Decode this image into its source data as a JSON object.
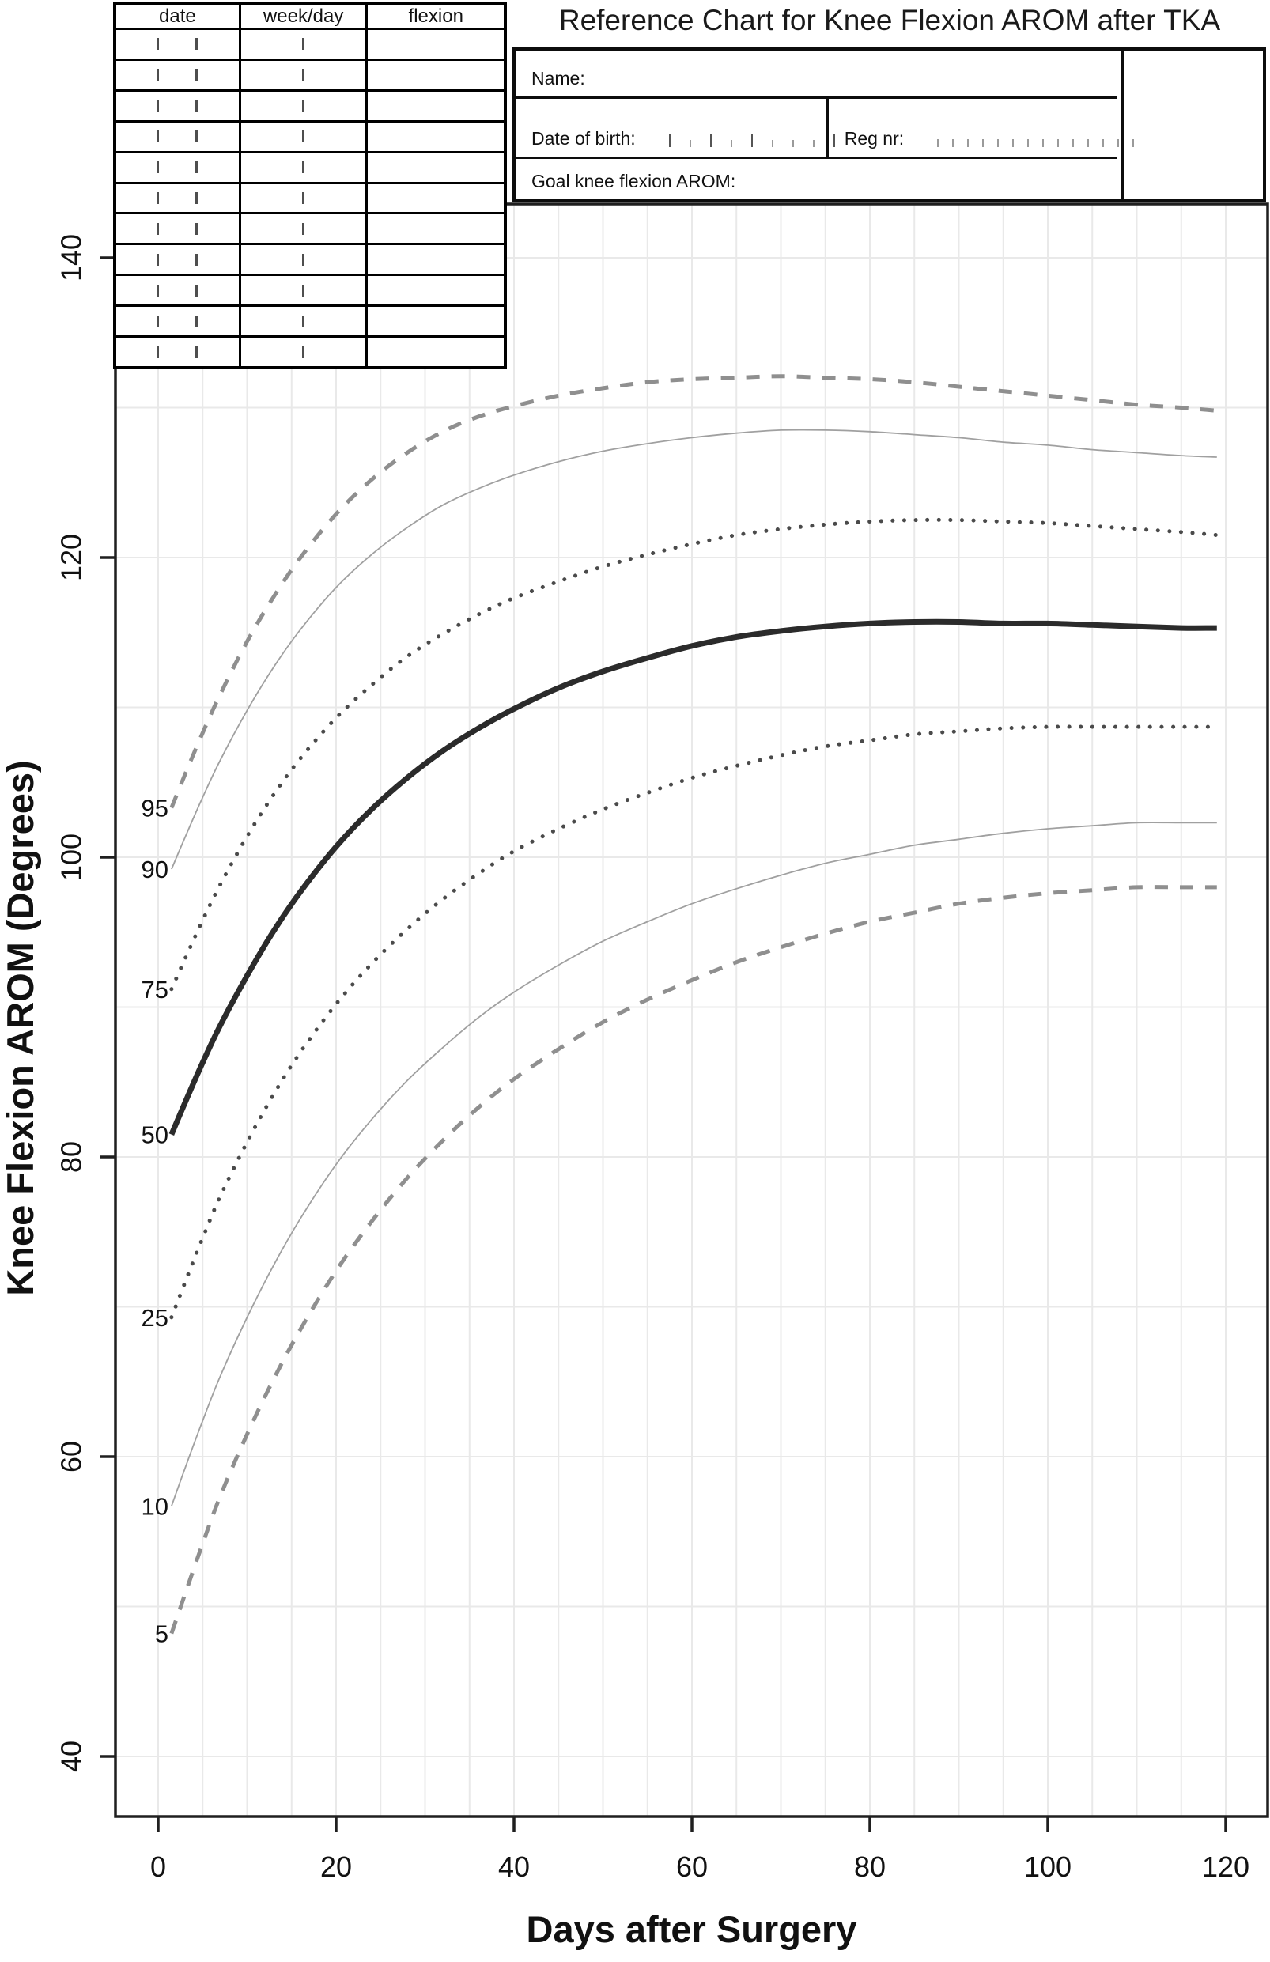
{
  "title": "Reference Chart for Knee Flexion AROM after TKA",
  "log_table": {
    "headers": [
      "date",
      "week/day",
      "flexion"
    ],
    "row_count": 11,
    "date_tick_count": 2,
    "week_tick_count": 1
  },
  "form": {
    "name_label": "Name:",
    "dob_label": "Date of birth:",
    "reg_label": "Reg nr:",
    "goal_label": "Goal knee flexion AROM:",
    "dob_tick_pattern": [
      "tall",
      "short",
      "tall",
      "short",
      "tall",
      "short",
      "short",
      "short",
      "tall"
    ],
    "reg_tick_count": 14
  },
  "colors": {
    "axis": "#1f1f1f",
    "grid": "#e9e9e9",
    "median": "#2b2b2b",
    "dotted": "#4a4a4a",
    "thin": "#a0a0a0",
    "dashed": "#8f8f8f"
  },
  "chart_data": {
    "type": "line",
    "title": "Reference Chart for Knee Flexion AROM after TKA",
    "xlabel": "Days after Surgery",
    "ylabel": "Knee Flexion AROM (Degrees)",
    "xlim": [
      -5,
      125
    ],
    "ylim": [
      36,
      143.5
    ],
    "x_ticks": [
      0,
      20,
      40,
      60,
      80,
      100,
      120
    ],
    "y_ticks": [
      40,
      60,
      80,
      100,
      120,
      140
    ],
    "grid": {
      "x_step": 5,
      "x_range": [
        0,
        120
      ],
      "y_step": 10,
      "y_range": [
        40,
        140
      ]
    },
    "legend_position": "curve-start-labels",
    "days": [
      1.5,
      3,
      5,
      7,
      10,
      13,
      16,
      20,
      24,
      28,
      32,
      36,
      40,
      45,
      50,
      55,
      60,
      65,
      70,
      75,
      80,
      85,
      90,
      95,
      100,
      105,
      110,
      115,
      119
    ],
    "series": [
      {
        "name": "p95",
        "label": "95",
        "style": "dashed",
        "values": [
          103.3,
          105.5,
          108.3,
          110.9,
          114.4,
          117.4,
          120.0,
          122.9,
          125.2,
          127.0,
          128.4,
          129.4,
          130.1,
          130.8,
          131.3,
          131.7,
          131.9,
          132.0,
          132.1,
          132.0,
          131.9,
          131.7,
          131.4,
          131.1,
          130.8,
          130.5,
          130.2,
          130.0,
          129.8
        ]
      },
      {
        "name": "p90",
        "label": "90",
        "style": "thin",
        "values": [
          99.2,
          101.3,
          104.0,
          106.5,
          109.8,
          112.7,
          115.2,
          118.0,
          120.2,
          122.0,
          123.5,
          124.6,
          125.5,
          126.4,
          127.1,
          127.6,
          128.0,
          128.3,
          128.5,
          128.5,
          128.4,
          128.2,
          128.0,
          127.7,
          127.5,
          127.2,
          127.0,
          126.8,
          126.7
        ]
      },
      {
        "name": "p75",
        "label": "75",
        "style": "dotted",
        "values": [
          91.2,
          93.2,
          95.8,
          98.2,
          101.4,
          104.2,
          106.6,
          109.3,
          111.5,
          113.4,
          114.9,
          116.2,
          117.3,
          118.4,
          119.4,
          120.2,
          120.9,
          121.5,
          121.9,
          122.2,
          122.4,
          122.5,
          122.5,
          122.4,
          122.3,
          122.1,
          121.9,
          121.7,
          121.5
        ]
      },
      {
        "name": "p50",
        "label": "50",
        "style": "median",
        "values": [
          81.5,
          83.6,
          86.3,
          88.8,
          92.1,
          95.1,
          97.7,
          100.7,
          103.2,
          105.3,
          107.1,
          108.6,
          109.9,
          111.3,
          112.4,
          113.3,
          114.1,
          114.7,
          115.1,
          115.4,
          115.6,
          115.7,
          115.7,
          115.6,
          115.6,
          115.5,
          115.4,
          115.3,
          115.3
        ]
      },
      {
        "name": "p25",
        "label": "25",
        "style": "dotted",
        "values": [
          69.3,
          71.6,
          74.6,
          77.4,
          81.0,
          84.2,
          87.0,
          90.2,
          92.9,
          95.2,
          97.2,
          98.9,
          100.4,
          101.9,
          103.2,
          104.3,
          105.3,
          106.1,
          106.8,
          107.4,
          107.8,
          108.2,
          108.4,
          108.6,
          108.7,
          108.7,
          108.7,
          108.7,
          108.7
        ]
      },
      {
        "name": "p10",
        "label": "10",
        "style": "thin",
        "values": [
          56.7,
          59.2,
          62.4,
          65.4,
          69.3,
          72.8,
          75.9,
          79.5,
          82.5,
          85.1,
          87.3,
          89.3,
          91.0,
          92.8,
          94.4,
          95.7,
          96.9,
          97.9,
          98.8,
          99.6,
          100.2,
          100.8,
          101.2,
          101.6,
          101.9,
          102.1,
          102.3,
          102.3,
          102.3
        ]
      },
      {
        "name": "p5",
        "label": "5",
        "style": "dashed",
        "values": [
          48.2,
          50.8,
          54.2,
          57.4,
          61.5,
          65.2,
          68.5,
          72.4,
          75.7,
          78.6,
          81.1,
          83.3,
          85.2,
          87.2,
          89.0,
          90.5,
          91.8,
          93.0,
          94.0,
          94.9,
          95.7,
          96.3,
          96.9,
          97.3,
          97.6,
          97.8,
          98.0,
          98.0,
          98.0
        ]
      }
    ]
  }
}
